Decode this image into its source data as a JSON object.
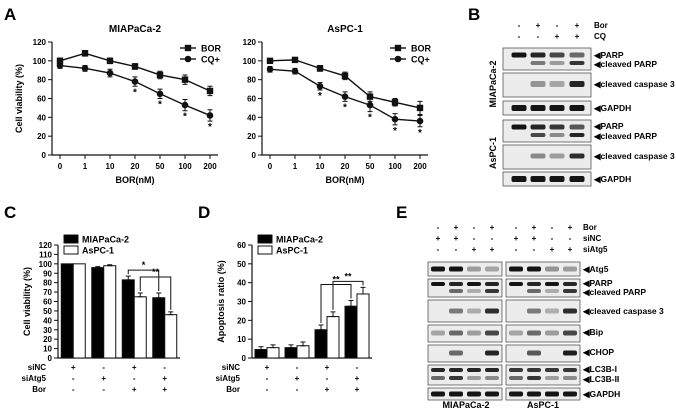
{
  "panels": {
    "A": {
      "letter": "A",
      "charts": [
        {
          "title": "MIAPaCa-2"
        },
        {
          "title": "AsPC-1"
        }
      ]
    },
    "B": {
      "letter": "B",
      "lane_rows": [
        {
          "name": "Bor",
          "signs": [
            "-",
            "+",
            "-",
            "+"
          ]
        },
        {
          "name": "CQ",
          "signs": [
            "-",
            "-",
            "+",
            "+"
          ]
        }
      ],
      "group_labels": [
        "MIAPaCa-2",
        "AsPC-1"
      ],
      "bands": [
        "PARP",
        "cleaved PARP",
        "cleaved caspase 3",
        "GAPDH"
      ]
    },
    "C": {
      "letter": "C"
    },
    "D": {
      "letter": "D"
    },
    "E": {
      "letter": "E",
      "lane_rows": [
        {
          "name": "Bor",
          "signs": [
            "-",
            "+",
            "-",
            "+",
            "-",
            "+",
            "-",
            "+"
          ]
        },
        {
          "name": "siNC",
          "signs": [
            "+",
            "+",
            "-",
            "-",
            "+",
            "+",
            "-",
            "-"
          ]
        },
        {
          "name": "siAtg5",
          "signs": [
            "-",
            "-",
            "+",
            "+",
            "-",
            "-",
            "+",
            "+"
          ]
        }
      ],
      "bands": [
        "Atg5",
        "PARP",
        "cleaved PARP",
        "cleaved caspase 3",
        "Bip",
        "CHOP",
        "LC3B-I",
        "LC3B-II",
        "GAPDH"
      ],
      "group_labels": [
        "MIAPaCa-2",
        "AsPC-1"
      ]
    }
  },
  "chart_data": [
    {
      "type": "line",
      "title": "MIAPaCa-2",
      "xlabel": "BOR(nM)",
      "ylabel": "Cell viability (%)",
      "categories": [
        "0",
        "1",
        "10",
        "20",
        "50",
        "100",
        "200"
      ],
      "ylim": [
        0,
        120
      ],
      "yticks": [
        "0",
        "20",
        "40",
        "60",
        "80",
        "100",
        "120"
      ],
      "series": [
        {
          "name": "BOR",
          "marker": "square",
          "values": [
            100,
            108,
            100,
            94,
            85,
            80,
            68
          ],
          "errors": [
            3,
            3,
            3,
            3,
            4,
            5,
            5
          ]
        },
        {
          "name": "CQ+",
          "marker": "circle",
          "values": [
            95,
            92,
            87,
            78,
            65,
            53,
            42
          ],
          "errors": [
            3,
            3,
            4,
            5,
            5,
            6,
            6
          ]
        }
      ],
      "stars": [
        "",
        "",
        "",
        "*",
        "*",
        "*",
        "*"
      ],
      "legend": "top-right"
    },
    {
      "type": "line",
      "title": "AsPC-1",
      "xlabel": "BOR(nM)",
      "ylabel": "",
      "categories": [
        "0",
        "1",
        "10",
        "20",
        "50",
        "100",
        "200"
      ],
      "ylim": [
        0,
        120
      ],
      "yticks": [
        "0",
        "20",
        "40",
        "60",
        "80",
        "100",
        "120"
      ],
      "series": [
        {
          "name": "BOR",
          "marker": "square",
          "values": [
            100,
            101,
            92,
            84,
            62,
            56,
            50
          ],
          "errors": [
            2,
            2,
            3,
            4,
            5,
            4,
            7
          ]
        },
        {
          "name": "CQ+",
          "marker": "circle",
          "values": [
            91,
            89,
            73,
            62,
            53,
            38,
            36
          ],
          "errors": [
            3,
            3,
            4,
            5,
            7,
            6,
            6
          ]
        }
      ],
      "stars": [
        "",
        "",
        "*",
        "*",
        "*",
        "*",
        "*"
      ],
      "legend": "top-right"
    },
    {
      "type": "bar",
      "ylabel": "Cell viability (%)",
      "ylim": [
        0,
        120
      ],
      "yticks": [
        "0",
        "10",
        "20",
        "30",
        "40",
        "50",
        "60",
        "70",
        "80",
        "90",
        "100",
        "110",
        "120"
      ],
      "treatment_rows": [
        {
          "name": "siNC",
          "signs": [
            "+",
            "-",
            "+",
            "-"
          ]
        },
        {
          "name": "siAtg5",
          "signs": [
            "-",
            "+",
            "-",
            "+"
          ]
        },
        {
          "name": "Bor",
          "signs": [
            "-",
            "-",
            "+",
            "+"
          ]
        }
      ],
      "series": [
        {
          "name": "MIAPaCa-2",
          "fill": "#000000",
          "values": [
            100,
            96,
            83,
            64
          ],
          "errors": [
            0,
            1,
            4,
            5
          ]
        },
        {
          "name": "AsPC-1",
          "fill": "#ffffff",
          "values": [
            100,
            98,
            65,
            46
          ],
          "errors": [
            0,
            1,
            4,
            3
          ]
        }
      ],
      "significance": [
        {
          "label": "*",
          "from_group": 2,
          "to_group": 3,
          "series": 0
        },
        {
          "label": "**",
          "from_group": 2,
          "to_group": 3,
          "series": 1
        }
      ],
      "legend": "top-left"
    },
    {
      "type": "bar",
      "ylabel": "Apoptosis ratio (%)",
      "ylim": [
        0,
        60
      ],
      "yticks": [
        "0",
        "10",
        "20",
        "30",
        "40",
        "50",
        "60"
      ],
      "treatment_rows": [
        {
          "name": "siNC",
          "signs": [
            "+",
            "-",
            "+",
            "-"
          ]
        },
        {
          "name": "siAtg5",
          "signs": [
            "-",
            "+",
            "-",
            "+"
          ]
        },
        {
          "name": "Bor",
          "signs": [
            "-",
            "-",
            "+",
            "+"
          ]
        }
      ],
      "series": [
        {
          "name": "MIAPaCa-2",
          "fill": "#000000",
          "values": [
            4.5,
            5.5,
            15,
            27.5
          ],
          "errors": [
            1.5,
            1.5,
            2.5,
            3
          ]
        },
        {
          "name": "AsPC-1",
          "fill": "#ffffff",
          "values": [
            5.5,
            6.5,
            22,
            34
          ],
          "errors": [
            1.5,
            2,
            2.5,
            3.5
          ]
        }
      ],
      "significance": [
        {
          "label": "**",
          "from_group": 2,
          "to_group": 3,
          "series": 1
        },
        {
          "label": "**",
          "from_group": 2,
          "to_group": 3,
          "series": 0
        }
      ],
      "legend": "top-left"
    }
  ]
}
